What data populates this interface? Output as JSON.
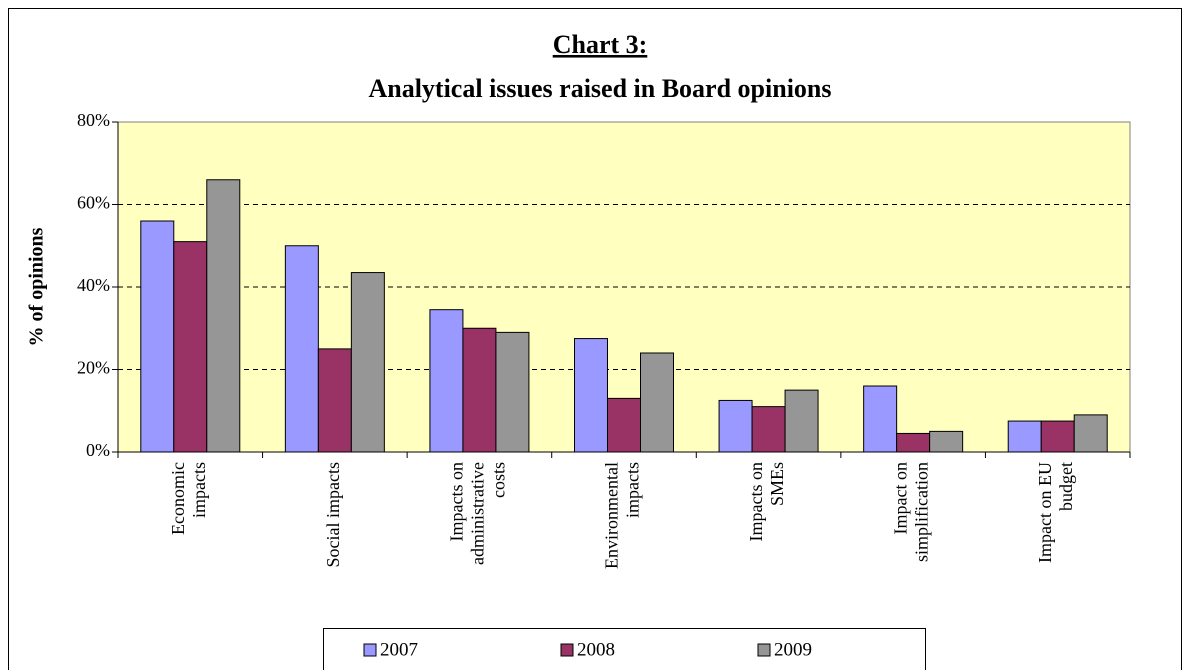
{
  "chart_data": {
    "type": "bar",
    "title": "Chart 3:",
    "subtitle": "Analytical issues raised in Board opinions",
    "y_label": "% of opinions",
    "categories": [
      "Economic impacts",
      "Social impacts",
      "Impacts on administrative costs",
      "Environmental impacts",
      "Impacts on SMEs",
      "Impact on simplification",
      "Impact on EU budget"
    ],
    "series": [
      {
        "name": "2007",
        "color": "#9999ff",
        "values": [
          56,
          50,
          34.5,
          27.5,
          12.5,
          16,
          7.5
        ]
      },
      {
        "name": "2008",
        "color": "#993366",
        "values": [
          51,
          25,
          30,
          13,
          11,
          4.5,
          7.5
        ]
      },
      {
        "name": "2009",
        "color": "#969696",
        "values": [
          66,
          43.5,
          29,
          24,
          15,
          5,
          9
        ]
      }
    ],
    "ylim": [
      0,
      80
    ],
    "yticks": [
      {
        "value": 0,
        "label": "0%"
      },
      {
        "value": 20,
        "label": "20%"
      },
      {
        "value": 40,
        "label": "40%"
      },
      {
        "value": 60,
        "label": "60%"
      },
      {
        "value": 80,
        "label": "80%"
      }
    ],
    "grid": true,
    "legend": "bottom"
  }
}
